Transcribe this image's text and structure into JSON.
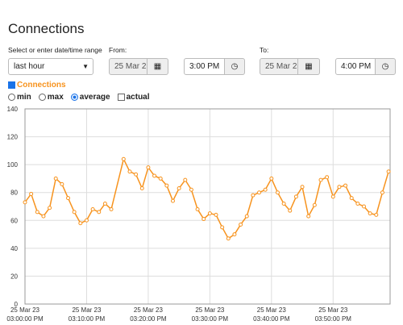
{
  "header": {
    "title": "Connections"
  },
  "range": {
    "label": "Select or enter date/time range",
    "selected": "last hour"
  },
  "from": {
    "label": "From:",
    "date": "25 Mar 2",
    "time": "3:00 PM"
  },
  "to": {
    "label": "To:",
    "date": "25 Mar 2",
    "time": "4:00 PM"
  },
  "series_toggle": {
    "label": "Connections",
    "checked": true
  },
  "modes": [
    {
      "label": "min",
      "checked": false
    },
    {
      "label": "max",
      "checked": false
    },
    {
      "label": "average",
      "checked": true
    },
    {
      "label": "actual",
      "checked": false
    }
  ],
  "chart_data": {
    "type": "line",
    "color": "#f7931e",
    "grid": true,
    "x": [
      "03:00:00 PM",
      "03:01:00 PM",
      "03:02:00 PM",
      "03:03:00 PM",
      "03:04:00 PM",
      "03:05:00 PM",
      "03:06:00 PM",
      "03:07:00 PM",
      "03:08:00 PM",
      "03:09:00 PM",
      "03:10:00 PM",
      "03:11:00 PM",
      "03:12:00 PM",
      "03:13:00 PM",
      "03:14:00 PM",
      "03:16:00 PM",
      "03:17:00 PM",
      "03:18:00 PM",
      "03:19:00 PM",
      "03:20:00 PM",
      "03:21:00 PM",
      "03:22:00 PM",
      "03:23:00 PM",
      "03:24:00 PM",
      "03:25:00 PM",
      "03:26:00 PM",
      "03:27:00 PM",
      "03:28:00 PM",
      "03:29:00 PM",
      "03:30:00 PM",
      "03:31:00 PM",
      "03:32:00 PM",
      "03:33:00 PM",
      "03:34:00 PM",
      "03:35:00 PM",
      "03:36:00 PM",
      "03:37:00 PM",
      "03:38:00 PM",
      "03:39:00 PM",
      "03:40:00 PM",
      "03:41:00 PM",
      "03:42:00 PM",
      "03:43:00 PM",
      "03:44:00 PM",
      "03:45:00 PM",
      "03:46:00 PM",
      "03:47:00 PM",
      "03:48:00 PM",
      "03:49:00 PM",
      "03:50:00 PM",
      "03:51:00 PM",
      "03:52:00 PM",
      "03:53:00 PM",
      "03:54:00 PM",
      "03:55:00 PM",
      "03:56:00 PM",
      "03:57:00 PM",
      "03:58:00 PM",
      "03:59:00 PM"
    ],
    "values": [
      73,
      79,
      66,
      63,
      69,
      90,
      86,
      76,
      66,
      58,
      60,
      68,
      66,
      72,
      68,
      104,
      95,
      93,
      83,
      98,
      92,
      90,
      85,
      74,
      83,
      89,
      82,
      68,
      61,
      65,
      64,
      55,
      47,
      50,
      57,
      63,
      78,
      80,
      82,
      90,
      80,
      72,
      67,
      77,
      84,
      63,
      71,
      89,
      91,
      77,
      84,
      85,
      76,
      72,
      70,
      65,
      64,
      80,
      95
    ],
    "xlim": [
      "03:00:00 PM",
      "03:59:15 PM"
    ],
    "xticks": [
      {
        "value": "03:00:00 PM",
        "label": [
          "25 Mar 23",
          "03:00:00 PM"
        ]
      },
      {
        "value": "03:10:00 PM",
        "label": [
          "25 Mar 23",
          "03:10:00 PM"
        ]
      },
      {
        "value": "03:20:00 PM",
        "label": [
          "25 Mar 23",
          "03:20:00 PM"
        ]
      },
      {
        "value": "03:30:00 PM",
        "label": [
          "25 Mar 23",
          "03:30:00 PM"
        ]
      },
      {
        "value": "03:40:00 PM",
        "label": [
          "25 Mar 23",
          "03:40:00 PM"
        ]
      },
      {
        "value": "03:50:00 PM",
        "label": [
          "25 Mar 23",
          "03:50:00 PM"
        ]
      }
    ],
    "ylim": [
      0,
      140
    ],
    "yticks": [
      0,
      20,
      40,
      60,
      80,
      100,
      120,
      140
    ]
  }
}
